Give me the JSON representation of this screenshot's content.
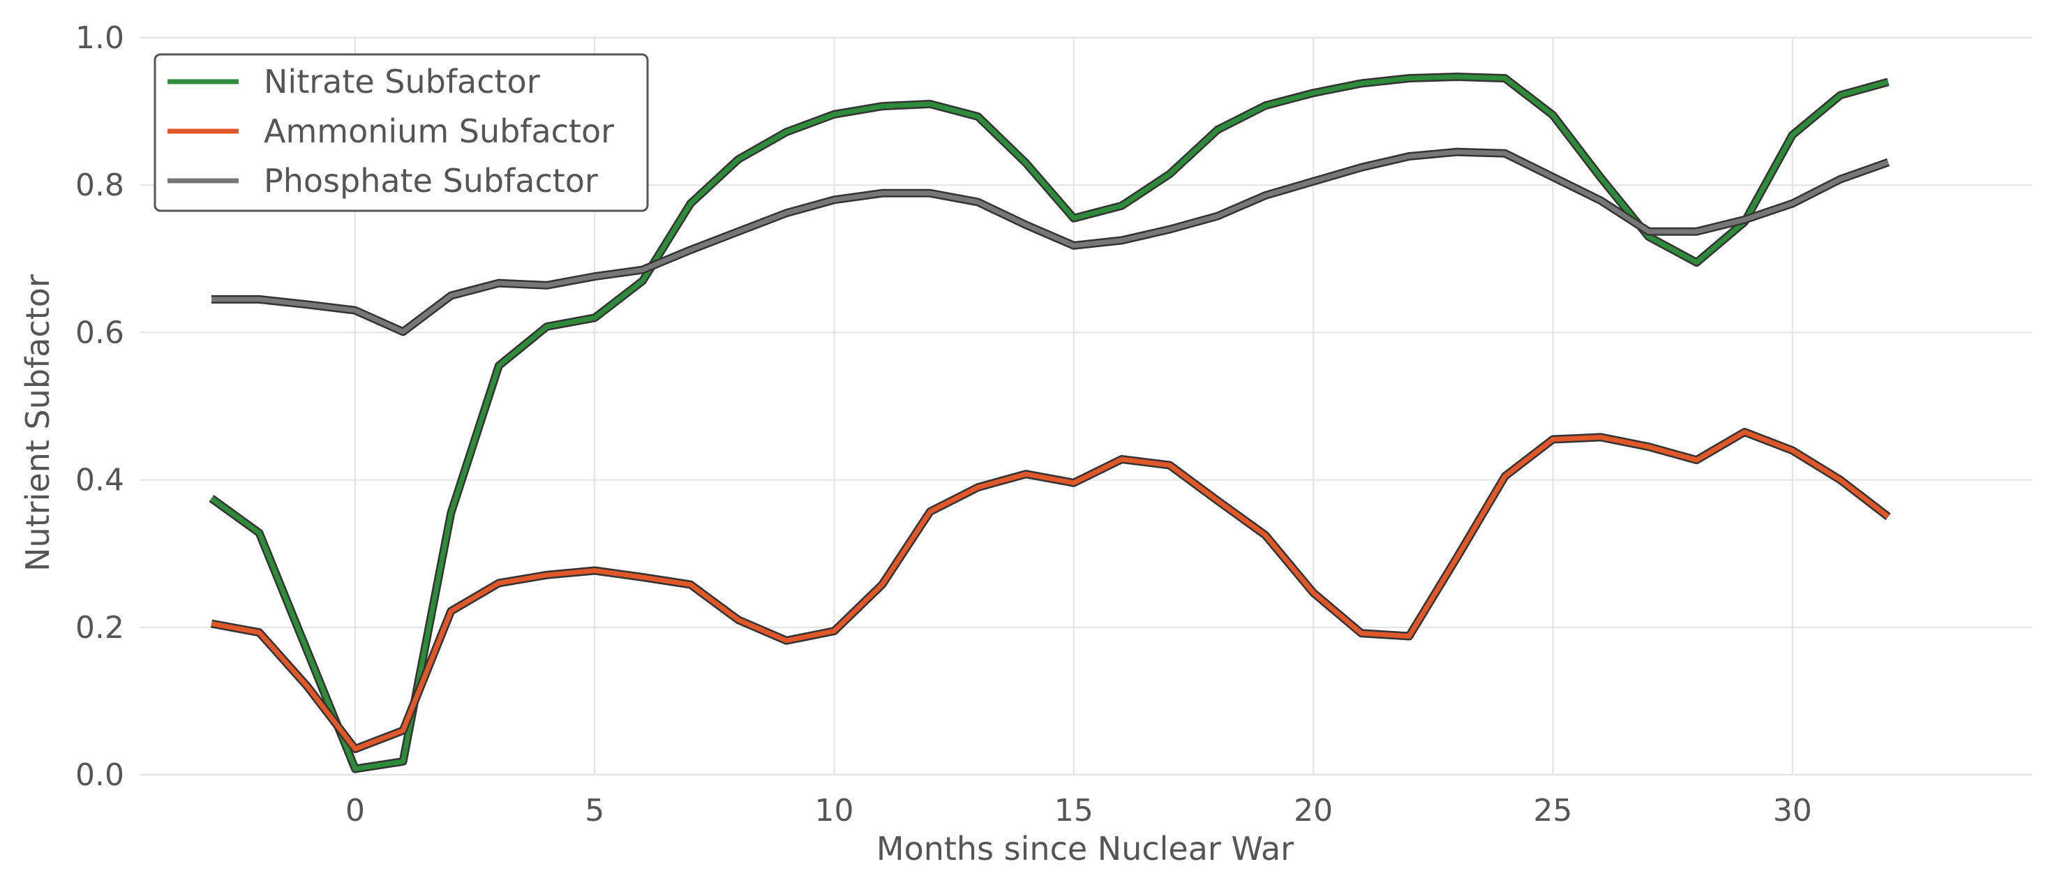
{
  "chart_data": {
    "type": "line",
    "title": "",
    "xlabel": "Months since Nuclear War",
    "ylabel": "Nutrient Subfactor",
    "xlim": [
      -4.5,
      35
    ],
    "ylim": [
      0,
      1.0
    ],
    "x_ticks": [
      0,
      5,
      10,
      15,
      20,
      25,
      30
    ],
    "y_ticks": [
      0.0,
      0.2,
      0.4,
      0.6,
      0.8,
      1.0
    ],
    "x_tick_labels": [
      "0",
      "5",
      "10",
      "15",
      "20",
      "25",
      "30"
    ],
    "y_tick_labels": [
      "0.0",
      "0.2",
      "0.4",
      "0.6",
      "0.8",
      "1.0"
    ],
    "grid": true,
    "legend_position": "top-left",
    "x": [
      -3,
      -2,
      -1,
      0,
      1,
      2,
      3,
      4,
      5,
      6,
      7,
      8,
      9,
      10,
      11,
      12,
      13,
      14,
      15,
      16,
      17,
      18,
      19,
      20,
      21,
      22,
      23,
      24,
      25,
      26,
      27,
      28,
      29,
      30,
      31,
      32
    ],
    "series": [
      {
        "name": "Nitrate Subfactor",
        "color": "#2e8b3a",
        "values": [
          0.375,
          0.328,
          0.168,
          0.008,
          0.018,
          0.355,
          0.555,
          0.608,
          0.62,
          0.67,
          0.775,
          0.835,
          0.872,
          0.896,
          0.907,
          0.91,
          0.893,
          0.83,
          0.755,
          0.772,
          0.815,
          0.875,
          0.908,
          0.925,
          0.938,
          0.945,
          0.947,
          0.945,
          0.895,
          0.81,
          0.73,
          0.695,
          0.75,
          0.868,
          0.922,
          0.94
        ]
      },
      {
        "name": "Ammonium Subfactor",
        "color": "#e0582a",
        "values": [
          0.205,
          0.193,
          0.12,
          0.035,
          0.06,
          0.222,
          0.26,
          0.271,
          0.277,
          0.268,
          0.258,
          0.21,
          0.182,
          0.195,
          0.258,
          0.357,
          0.39,
          0.408,
          0.396,
          0.428,
          0.42,
          0.372,
          0.325,
          0.247,
          0.192,
          0.188,
          0.295,
          0.405,
          0.455,
          0.458,
          0.445,
          0.427,
          0.465,
          0.44,
          0.4,
          0.35
        ]
      },
      {
        "name": "Phosphate Subfactor",
        "color": "#777777",
        "values": [
          0.645,
          0.645,
          0.638,
          0.63,
          0.601,
          0.65,
          0.667,
          0.664,
          0.676,
          0.685,
          0.712,
          0.737,
          0.762,
          0.78,
          0.789,
          0.789,
          0.777,
          0.746,
          0.718,
          0.725,
          0.74,
          0.758,
          0.786,
          0.805,
          0.824,
          0.839,
          0.845,
          0.843,
          0.811,
          0.779,
          0.737,
          0.737,
          0.753,
          0.775,
          0.808,
          0.831
        ]
      }
    ]
  }
}
